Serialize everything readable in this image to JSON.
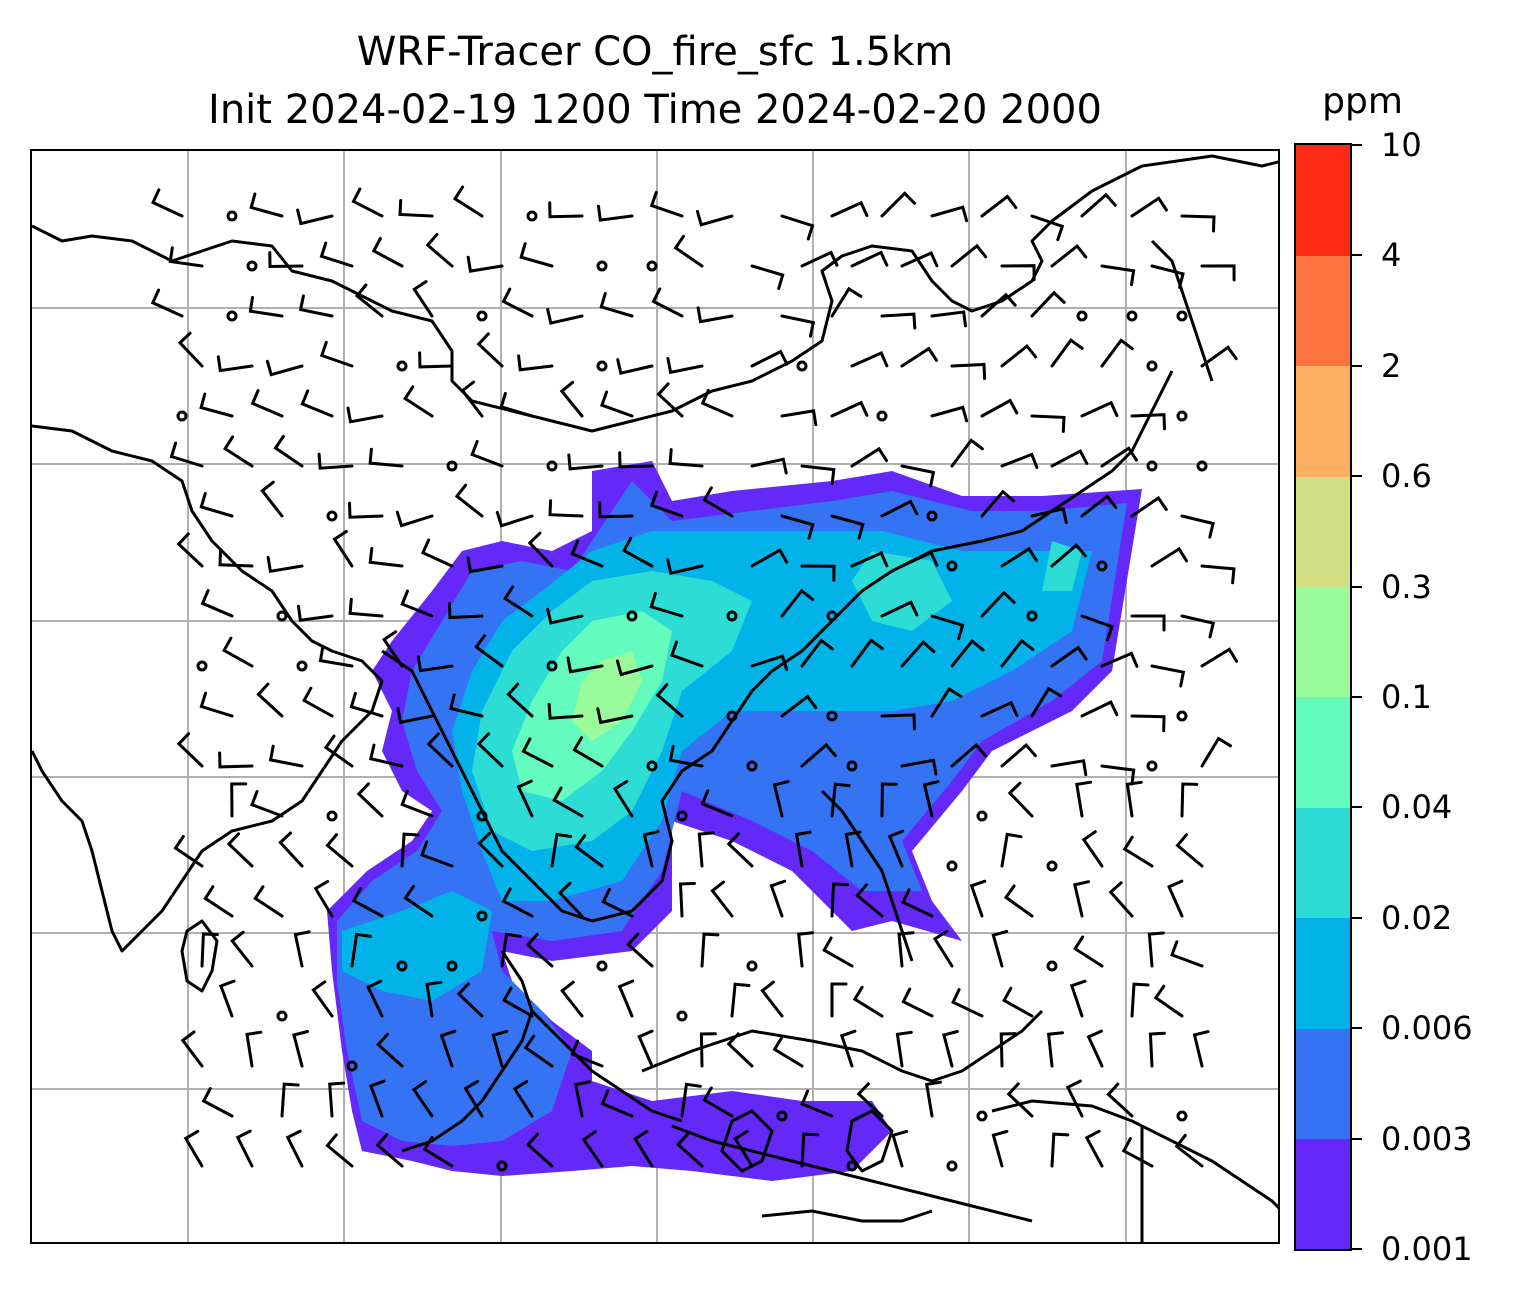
{
  "title": {
    "line1": "WRF-Tracer CO_fire_sfc 1.5km",
    "line2": "Init 2024-02-19 1200 Time 2024-02-20 2000"
  },
  "colorbar": {
    "unit": "ppm",
    "tick_labels": [
      "0.001",
      "0.003",
      "0.006",
      "0.02",
      "0.04",
      "0.1",
      "0.3",
      "0.6",
      "2",
      "4",
      "10"
    ],
    "colors": [
      "#6428f8",
      "#3473f4",
      "#02b3ea",
      "#2edcd6",
      "#64fbbe",
      "#9afb9a",
      "#d0df82",
      "#fdb062",
      "#fd7340",
      "#fd2a16"
    ]
  },
  "map": {
    "gridlines": true,
    "field": "CO_fire_sfc",
    "wind_barbs": true,
    "coastline_color": "#000000",
    "gridline_color": "#b0b0b0"
  }
}
